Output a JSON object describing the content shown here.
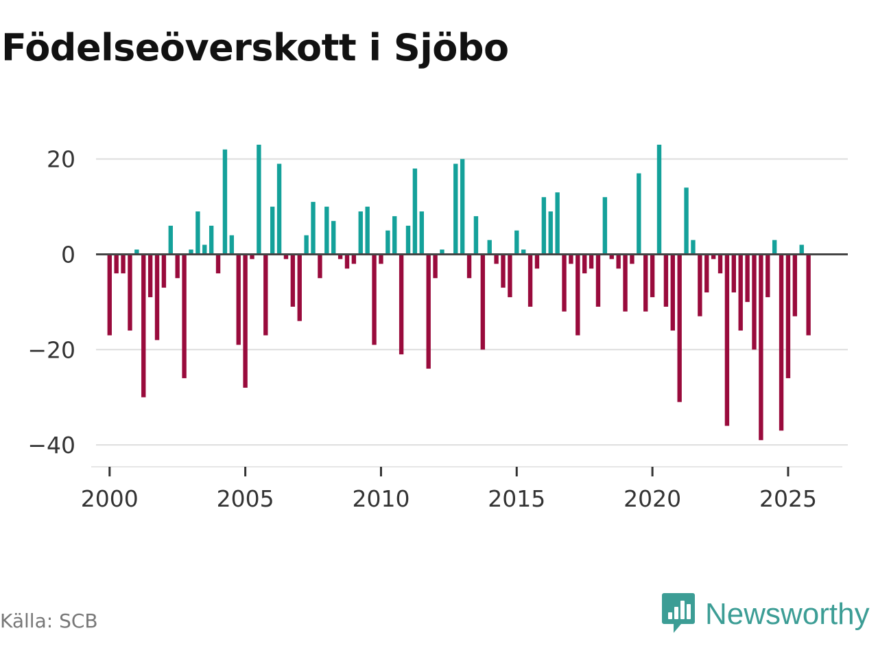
{
  "title": "Födelseöverskott i Sjöbo",
  "source": "Källa: SCB",
  "brand": {
    "name": "Newsworthy",
    "icon": "newsworthy-logo-icon"
  },
  "colors": {
    "positive": "#14a19a",
    "negative": "#990b3c",
    "zero_line": "#444444",
    "grid": "#dddddd",
    "brand": "#3c9d95"
  },
  "chart_data": {
    "type": "bar",
    "title": "Födelseöverskott i Sjöbo",
    "xlabel": "",
    "ylabel": "",
    "frequency": "quarterly",
    "start": {
      "year": 2000,
      "quarter": 1
    },
    "xlim": [
      1999.5,
      2027.2
    ],
    "ylim": [
      -42,
      26
    ],
    "yticks": [
      20,
      0,
      -20,
      -40
    ],
    "ytick_labels": [
      "20",
      "0",
      "−20",
      "−40"
    ],
    "xticks": [
      2000,
      2005,
      2010,
      2015,
      2020,
      2025
    ],
    "xtick_labels": [
      "2000",
      "2005",
      "2010",
      "2015",
      "2020",
      "2025"
    ],
    "grid": true,
    "legend": "none",
    "values": [
      -17,
      -4,
      -4,
      -16,
      1,
      -30,
      -9,
      -18,
      -7,
      6,
      -5,
      -26,
      1,
      9,
      2,
      6,
      -4,
      22,
      4,
      -19,
      -28,
      -1,
      23,
      -17,
      10,
      19,
      -1,
      -11,
      -14,
      4,
      11,
      -5,
      10,
      7,
      -1,
      -3,
      -2,
      9,
      10,
      -19,
      -2,
      5,
      8,
      -21,
      6,
      18,
      9,
      -24,
      -5,
      1,
      0,
      19,
      20,
      -5,
      8,
      -20,
      3,
      -2,
      -7,
      -9,
      5,
      1,
      -11,
      -3,
      12,
      9,
      13,
      -12,
      -2,
      -17,
      -4,
      -3,
      -11,
      12,
      -1,
      -3,
      -12,
      -2,
      17,
      -12,
      -9,
      23,
      -11,
      -16,
      -31,
      14,
      3,
      -13,
      -8,
      -1,
      -4,
      -36,
      -8,
      -16,
      -10,
      -20,
      -39,
      -9,
      3,
      -37,
      -26,
      -13,
      2,
      -17
    ]
  }
}
